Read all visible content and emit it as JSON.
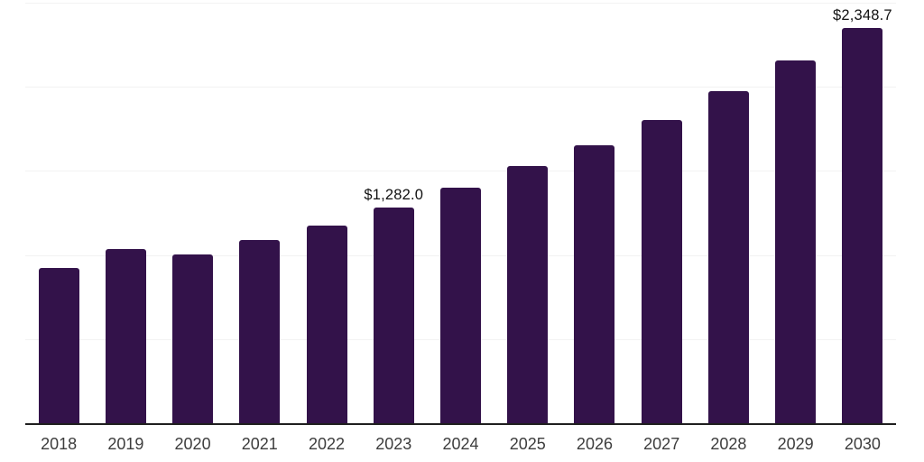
{
  "chart_data": {
    "type": "bar",
    "title": "",
    "xlabel": "",
    "ylabel": "",
    "categories": [
      "2018",
      "2019",
      "2020",
      "2021",
      "2022",
      "2023",
      "2024",
      "2025",
      "2026",
      "2027",
      "2028",
      "2029",
      "2030"
    ],
    "values": [
      925,
      1035,
      1005,
      1090,
      1175,
      1282.0,
      1400,
      1530,
      1655,
      1805,
      1975,
      2155,
      2348.7
    ],
    "data_labels": [
      "",
      "",
      "",
      "",
      "",
      "$1,282.0",
      "",
      "",
      "",
      "",
      "",
      "",
      "$2,348.7"
    ],
    "ylim": [
      0,
      2500
    ],
    "gridline_step": 500,
    "grid": "horizontal",
    "y_axis_labels_visible": false,
    "legend": "none",
    "colors": {
      "bar": "#33124a",
      "axis_line": "#1f1f1f",
      "gridline": "#f2f2f2",
      "tick_label": "#3d3d3d",
      "data_label": "#111111",
      "background": "#ffffff"
    }
  }
}
